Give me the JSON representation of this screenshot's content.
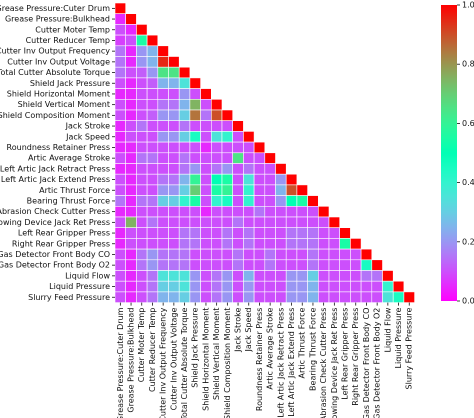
{
  "chart_data": {
    "type": "heatmap",
    "title": "",
    "xlabel": "",
    "ylabel": "",
    "mask": "upper-triangle-above-diagonal",
    "labels": [
      "Grease Pressure:Cuter Drum",
      "Grease Pressure:Bulkhead",
      "Cutter Moter Temp",
      "Cutter Reducer Temp",
      "Cutter Inv Output Frequency",
      "Cutter Inv Output Voltage",
      "Total Cutter Absolute Torque",
      "Shield Jack Pressure",
      "Shield Horizontal Moment",
      "Shield Vertical Moment",
      "Shield Composition Moment",
      "Jack Stroke",
      "Jack Speed",
      "Roundness Retainer Press",
      "Artic Average Stroke",
      "Left Artic Jack Retract Press",
      "Left Artic Jack Extend Press",
      "Artic Thrust Force",
      "Bearing Thrust Force",
      "Abrasion Check Cutter Press",
      "Towing Device Jack Ret Press",
      "Left Rear Gripper Press",
      "Right Rear Gripper Press",
      "Gas Detector Front Body CO",
      "Gas Detector Front Body O2",
      "Liquid Flow",
      "Liquid Pressure",
      "Slurry Feed Pressure"
    ],
    "matrix": [
      [
        1
      ],
      [
        0.05,
        1
      ],
      [
        0.1,
        0.05,
        1
      ],
      [
        0.08,
        0.1,
        0.55,
        1
      ],
      [
        0.15,
        0.05,
        0.2,
        0.25,
        1
      ],
      [
        0.15,
        0.05,
        0.2,
        0.25,
        0.95,
        1
      ],
      [
        0.15,
        0.1,
        0.12,
        0.2,
        0.65,
        0.65,
        1
      ],
      [
        0.1,
        0.05,
        0.1,
        0.12,
        0.25,
        0.25,
        0.35,
        1
      ],
      [
        0.05,
        0.05,
        0.1,
        0.1,
        0.1,
        0.1,
        0.2,
        0.1,
        1
      ],
      [
        0.1,
        0.05,
        0.1,
        0.1,
        0.15,
        0.15,
        0.25,
        0.75,
        0.1,
        1
      ],
      [
        0.1,
        0.05,
        0.1,
        0.12,
        0.2,
        0.2,
        0.3,
        0.85,
        0.15,
        0.9,
        1
      ],
      [
        0.05,
        0.1,
        0.15,
        0.1,
        0.1,
        0.1,
        0.15,
        0.1,
        0.1,
        0.1,
        0.1,
        1
      ],
      [
        0.05,
        0.1,
        0.1,
        0.1,
        0.2,
        0.2,
        0.3,
        0.45,
        0.1,
        0.35,
        0.4,
        0.1,
        1
      ],
      [
        0.05,
        0.05,
        0.1,
        0.1,
        0.1,
        0.1,
        0.1,
        0.1,
        0.05,
        0.1,
        0.1,
        0.1,
        0.1,
        1
      ],
      [
        0.1,
        0.05,
        0.15,
        0.15,
        0.1,
        0.1,
        0.15,
        0.1,
        0.1,
        0.1,
        0.1,
        0.65,
        0.1,
        0.1,
        1
      ],
      [
        0.05,
        0.05,
        0.1,
        0.1,
        0.1,
        0.1,
        0.15,
        0.2,
        0.1,
        0.15,
        0.2,
        0.1,
        0.15,
        0.1,
        0.1,
        1
      ],
      [
        0.1,
        0.05,
        0.1,
        0.1,
        0.15,
        0.15,
        0.25,
        0.6,
        0.1,
        0.5,
        0.55,
        0.1,
        0.35,
        0.1,
        0.1,
        0.2,
        1
      ],
      [
        0.1,
        0.05,
        0.1,
        0.1,
        0.2,
        0.2,
        0.3,
        0.7,
        0.1,
        0.55,
        0.6,
        0.1,
        0.4,
        0.1,
        0.1,
        0.25,
        0.9,
        1
      ],
      [
        0.15,
        0.05,
        0.15,
        0.15,
        0.3,
        0.3,
        0.4,
        0.55,
        0.1,
        0.4,
        0.45,
        0.1,
        0.4,
        0.1,
        0.1,
        0.2,
        0.5,
        0.55,
        1
      ],
      [
        0.05,
        0.05,
        0.1,
        0.1,
        0.1,
        0.1,
        0.1,
        0.1,
        0.05,
        0.1,
        0.1,
        0.1,
        0.1,
        0.15,
        0.1,
        0.1,
        0.1,
        0.1,
        0.1,
        1
      ],
      [
        0.1,
        0.75,
        0.1,
        0.15,
        0.1,
        0.1,
        0.1,
        0.1,
        0.1,
        0.1,
        0.1,
        0.15,
        0.1,
        0.1,
        0.1,
        0.1,
        0.1,
        0.1,
        0.1,
        0.1,
        1
      ],
      [
        0.05,
        0.1,
        0.1,
        0.1,
        0.1,
        0.1,
        0.15,
        0.15,
        0.1,
        0.1,
        0.15,
        0.1,
        0.15,
        0.1,
        0.1,
        0.1,
        0.15,
        0.15,
        0.15,
        0.1,
        0.1,
        1
      ],
      [
        0.05,
        0.1,
        0.1,
        0.1,
        0.1,
        0.1,
        0.15,
        0.15,
        0.1,
        0.1,
        0.15,
        0.1,
        0.15,
        0.1,
        0.1,
        0.1,
        0.15,
        0.15,
        0.15,
        0.1,
        0.1,
        0.55,
        1
      ],
      [
        0.1,
        0.05,
        0.15,
        0.2,
        0.15,
        0.15,
        0.15,
        0.1,
        0.1,
        0.1,
        0.1,
        0.15,
        0.1,
        0.1,
        0.15,
        0.1,
        0.1,
        0.1,
        0.15,
        0.1,
        0.1,
        0.1,
        0.1,
        1
      ],
      [
        0.1,
        0.05,
        0.15,
        0.2,
        0.15,
        0.15,
        0.15,
        0.1,
        0.1,
        0.1,
        0.1,
        0.15,
        0.1,
        0.1,
        0.15,
        0.1,
        0.1,
        0.1,
        0.15,
        0.1,
        0.1,
        0.1,
        0.1,
        0.45,
        1
      ],
      [
        0.1,
        0.05,
        0.1,
        0.15,
        0.35,
        0.35,
        0.35,
        0.2,
        0.1,
        0.15,
        0.2,
        0.1,
        0.25,
        0.1,
        0.1,
        0.1,
        0.2,
        0.2,
        0.3,
        0.1,
        0.1,
        0.1,
        0.1,
        0.15,
        0.15,
        1
      ],
      [
        0.1,
        0.05,
        0.1,
        0.15,
        0.3,
        0.3,
        0.35,
        0.2,
        0.1,
        0.15,
        0.2,
        0.1,
        0.2,
        0.1,
        0.1,
        0.1,
        0.2,
        0.2,
        0.25,
        0.1,
        0.1,
        0.1,
        0.1,
        0.1,
        0.1,
        0.4,
        1
      ],
      [
        0.1,
        0.05,
        0.1,
        0.15,
        0.25,
        0.25,
        0.3,
        0.2,
        0.1,
        0.15,
        0.2,
        0.1,
        0.2,
        0.1,
        0.1,
        0.1,
        0.2,
        0.2,
        0.25,
        0.1,
        0.1,
        0.1,
        0.1,
        0.1,
        0.1,
        0.35,
        0.45,
        1
      ]
    ],
    "colorbar": {
      "colormap": "rainbow",
      "vmin": 0,
      "vmax": 1,
      "ticks": [
        0.0,
        0.2,
        0.4,
        0.6,
        0.8,
        1.0
      ],
      "tick_labels": [
        "0.0",
        "0.2",
        "0.4",
        "0.6",
        "0.8",
        "1.0"
      ]
    },
    "grid": true
  }
}
